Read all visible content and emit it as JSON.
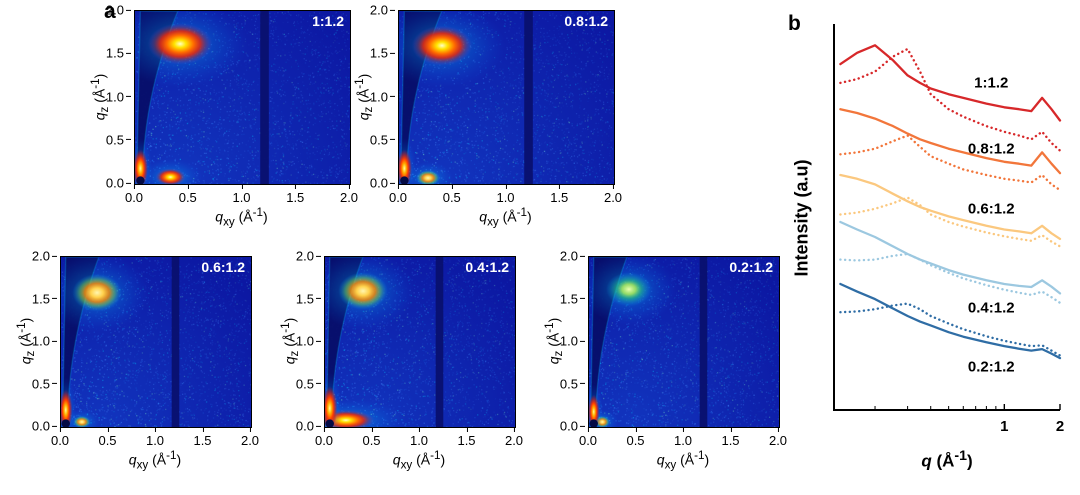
{
  "figure": {
    "panel_a_label": "a",
    "panel_b_label": "b"
  },
  "giwaxs_axis_parts": {
    "q": "q",
    "sub_z": "z",
    "sub_xy": "xy",
    "unit_open": "(Å",
    "unit_sup": "-1",
    "unit_close": ")"
  },
  "panel_b": {
    "ylabel": "Intensity (a.u)",
    "xlabel_q": "q",
    "unit_open": "(Å",
    "unit_sup": "-1",
    "unit_close": ")"
  },
  "chart_data": [
    {
      "type": "heatmap",
      "panel": "a",
      "description": "2D GIWAXS detector images for five compositions",
      "shared": {
        "xlabel": "q_xy (Å^-1)",
        "ylabel": "q_z (Å^-1)",
        "xlim": [
          0.0,
          2.0
        ],
        "ylim": [
          0.0,
          2.0
        ],
        "ticks": [
          0.0,
          0.5,
          1.0,
          1.5,
          2.0
        ],
        "tick_labels": [
          "0.0",
          "0.5",
          "1.0",
          "1.5",
          "2.0"
        ],
        "detector_gap_qxy": 1.2,
        "colormap": "jet",
        "base_color": "#0c17a2"
      },
      "subplots": [
        {
          "label": "1:1.2",
          "features": [
            {
              "qxy": 0.42,
              "qz": 1.62,
              "rx": 0.3,
              "ry": 0.24,
              "level": "strong"
            },
            {
              "qxy": 0.33,
              "qz": 0.08,
              "rx": 0.14,
              "ry": 0.1,
              "level": "strong"
            },
            {
              "qxy": 0.05,
              "qz": 0.18,
              "rx": 0.07,
              "ry": 0.22,
              "level": "beam"
            }
          ]
        },
        {
          "label": "0.8:1.2",
          "features": [
            {
              "qxy": 0.4,
              "qz": 1.6,
              "rx": 0.28,
              "ry": 0.23,
              "level": "strong"
            },
            {
              "qxy": 0.27,
              "qz": 0.07,
              "rx": 0.11,
              "ry": 0.09,
              "level": "medium"
            },
            {
              "qxy": 0.05,
              "qz": 0.18,
              "rx": 0.07,
              "ry": 0.22,
              "level": "beam"
            }
          ]
        },
        {
          "label": "0.6:1.2",
          "features": [
            {
              "qxy": 0.38,
              "qz": 1.58,
              "rx": 0.26,
              "ry": 0.22,
              "level": "medium"
            },
            {
              "qxy": 0.22,
              "qz": 0.06,
              "rx": 0.09,
              "ry": 0.07,
              "level": "medium"
            },
            {
              "qxy": 0.05,
              "qz": 0.2,
              "rx": 0.07,
              "ry": 0.24,
              "level": "beam"
            }
          ]
        },
        {
          "label": "0.4:1.2",
          "features": [
            {
              "qxy": 0.4,
              "qz": 1.6,
              "rx": 0.26,
              "ry": 0.22,
              "level": "medium"
            },
            {
              "qxy": 0.22,
              "qz": 0.08,
              "rx": 0.3,
              "ry": 0.12,
              "level": "strong"
            },
            {
              "qxy": 0.05,
              "qz": 0.22,
              "rx": 0.08,
              "ry": 0.26,
              "level": "beam"
            }
          ]
        },
        {
          "label": "0.2:1.2",
          "features": [
            {
              "qxy": 0.42,
              "qz": 1.62,
              "rx": 0.24,
              "ry": 0.2,
              "level": "weak"
            },
            {
              "qxy": 0.14,
              "qz": 0.06,
              "rx": 0.08,
              "ry": 0.07,
              "level": "medium"
            },
            {
              "qxy": 0.05,
              "qz": 0.18,
              "rx": 0.06,
              "ry": 0.2,
              "level": "beam"
            }
          ]
        }
      ]
    },
    {
      "type": "line",
      "panel": "b",
      "xlabel": "q (Å^-1)",
      "ylabel": "Intensity (a.u)",
      "xscale": "log",
      "xlim": [
        0.12,
        2.0
      ],
      "xticks": [
        1,
        2
      ],
      "minor_xticks": [
        0.2,
        0.3,
        0.4,
        0.5,
        0.6,
        0.7,
        0.8,
        0.9
      ],
      "x": [
        0.13,
        0.16,
        0.2,
        0.25,
        0.3,
        0.35,
        0.4,
        0.5,
        0.6,
        0.8,
        1.0,
        1.2,
        1.4,
        1.6,
        1.8,
        2.0
      ],
      "series": [
        {
          "ratio": "1:1.2",
          "style": "solid",
          "color": "#d7282a",
          "y": [
            0.92,
            0.95,
            0.97,
            0.93,
            0.89,
            0.87,
            0.855,
            0.84,
            0.83,
            0.815,
            0.805,
            0.8,
            0.795,
            0.83,
            0.8,
            0.77
          ]
        },
        {
          "ratio": "1:1.2",
          "style": "dotted",
          "color": "#d7282a",
          "y": [
            0.87,
            0.88,
            0.9,
            0.94,
            0.96,
            0.9,
            0.84,
            0.8,
            0.78,
            0.755,
            0.74,
            0.73,
            0.72,
            0.74,
            0.71,
            0.69
          ]
        },
        {
          "ratio": "0.8:1.2",
          "style": "solid",
          "color": "#f2763b",
          "y": [
            0.8,
            0.79,
            0.775,
            0.755,
            0.735,
            0.72,
            0.71,
            0.695,
            0.685,
            0.67,
            0.66,
            0.655,
            0.65,
            0.685,
            0.655,
            0.63
          ]
        },
        {
          "ratio": "0.8:1.2",
          "style": "dotted",
          "color": "#f2763b",
          "y": [
            0.68,
            0.685,
            0.695,
            0.715,
            0.73,
            0.7,
            0.675,
            0.655,
            0.64,
            0.625,
            0.615,
            0.61,
            0.605,
            0.625,
            0.6,
            0.585
          ]
        },
        {
          "ratio": "0.6:1.2",
          "style": "solid",
          "color": "#fbc87f",
          "y": [
            0.625,
            0.615,
            0.6,
            0.575,
            0.555,
            0.54,
            0.53,
            0.515,
            0.505,
            0.49,
            0.48,
            0.475,
            0.47,
            0.49,
            0.47,
            0.455
          ]
        },
        {
          "ratio": "0.6:1.2",
          "style": "dotted",
          "color": "#fbc87f",
          "y": [
            0.52,
            0.525,
            0.535,
            0.55,
            0.565,
            0.545,
            0.52,
            0.5,
            0.488,
            0.472,
            0.462,
            0.455,
            0.45,
            0.465,
            0.448,
            0.435
          ]
        },
        {
          "ratio": "0.4:1.2",
          "style": "solid",
          "color": "#9cc8e0",
          "y": [
            0.5,
            0.48,
            0.46,
            0.435,
            0.415,
            0.4,
            0.39,
            0.372,
            0.36,
            0.345,
            0.335,
            0.33,
            0.327,
            0.345,
            0.328,
            0.31
          ]
        },
        {
          "ratio": "0.4:1.2",
          "style": "dotted",
          "color": "#9cc8e0",
          "y": [
            0.4,
            0.398,
            0.4,
            0.41,
            0.415,
            0.4,
            0.385,
            0.365,
            0.35,
            0.332,
            0.32,
            0.312,
            0.306,
            0.315,
            0.3,
            0.285
          ]
        },
        {
          "ratio": "0.2:1.2",
          "style": "solid",
          "color": "#2f6da5",
          "y": [
            0.335,
            0.315,
            0.295,
            0.27,
            0.25,
            0.235,
            0.225,
            0.207,
            0.195,
            0.18,
            0.17,
            0.163,
            0.158,
            0.162,
            0.15,
            0.138
          ]
        },
        {
          "ratio": "0.2:1.2",
          "style": "dotted",
          "color": "#2f6da5",
          "y": [
            0.26,
            0.262,
            0.268,
            0.278,
            0.283,
            0.268,
            0.25,
            0.23,
            0.215,
            0.196,
            0.184,
            0.176,
            0.17,
            0.172,
            0.158,
            0.145
          ]
        }
      ],
      "labels": [
        {
          "text": "1:1.2",
          "q": 0.85,
          "y": 0.87
        },
        {
          "text": "0.8:1.2",
          "q": 0.85,
          "y": 0.695
        },
        {
          "text": "0.6:1.2",
          "q": 0.85,
          "y": 0.535
        },
        {
          "text": "0.4:1.2",
          "q": 0.85,
          "y": 0.27
        },
        {
          "text": "0.2:1.2",
          "q": 0.85,
          "y": 0.115
        }
      ]
    }
  ]
}
